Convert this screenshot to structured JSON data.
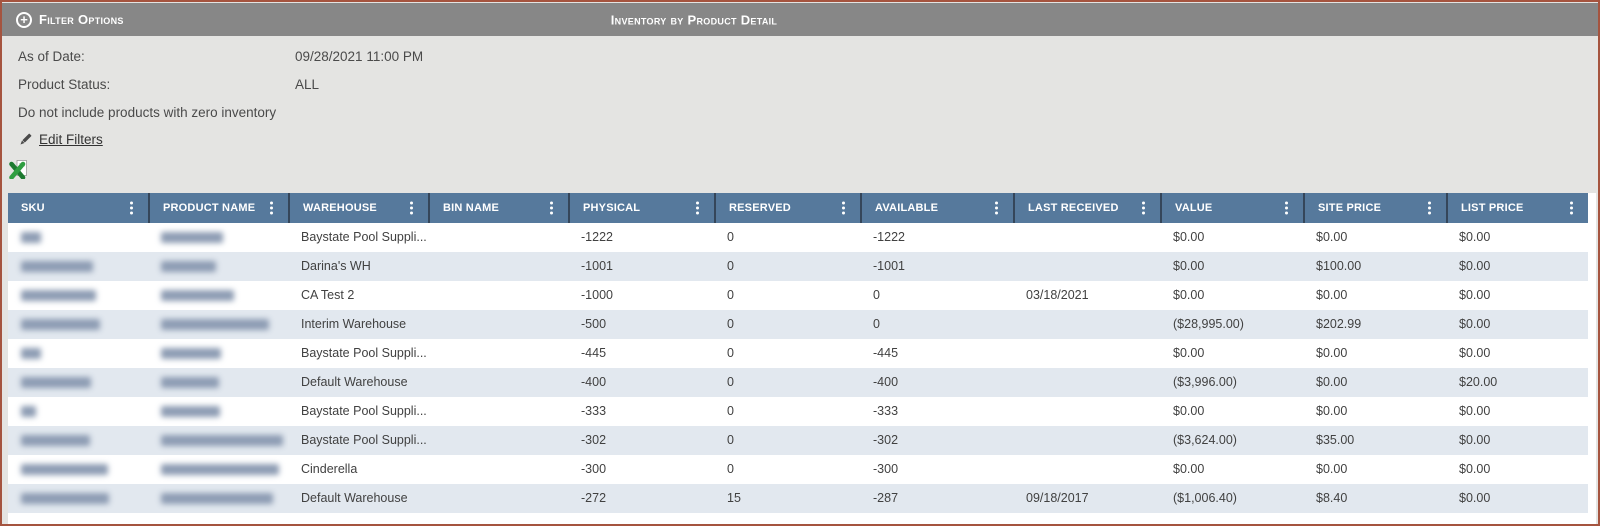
{
  "title_bar": {
    "filter_toggle_label": "Filter Options",
    "report_title": "Inventory by Product Detail"
  },
  "filter_panel": {
    "as_of_date_label": "As of Date:",
    "as_of_date_value": "09/28/2021 11:00 PM",
    "product_status_label": "Product Status:",
    "product_status_value": "ALL",
    "zero_inventory_note": "Do not include products with zero inventory",
    "edit_filters_label": "Edit Filters"
  },
  "toolbar": {
    "excel_export_icon": "export-to-excel"
  },
  "table": {
    "columns": [
      "SKU",
      "PRODUCT NAME",
      "WAREHOUSE",
      "BIN NAME",
      "PHYSICAL",
      "RESERVED",
      "AVAILABLE",
      "LAST RECEIVED",
      "VALUE",
      "SITE PRICE",
      "LIST PRICE"
    ],
    "rows": [
      {
        "sku_redacted": true,
        "name_redacted": true,
        "sku_blur_w": 20,
        "name_blur_w": 62,
        "warehouse": "Baystate Pool Suppli...",
        "bin_name": "",
        "physical": "-1222",
        "reserved": "0",
        "available": "-1222",
        "last_received": "",
        "value": "$0.00",
        "site_price": "$0.00",
        "list_price": "$0.00"
      },
      {
        "sku_redacted": true,
        "name_redacted": true,
        "sku_blur_w": 72,
        "name_blur_w": 55,
        "warehouse": "Darina's WH",
        "bin_name": "",
        "physical": "-1001",
        "reserved": "0",
        "available": "-1001",
        "last_received": "",
        "value": "$0.00",
        "site_price": "$100.00",
        "list_price": "$0.00"
      },
      {
        "sku_redacted": true,
        "name_redacted": true,
        "sku_blur_w": 75,
        "name_blur_w": 73,
        "warehouse": "CA Test 2",
        "bin_name": "",
        "physical": "-1000",
        "reserved": "0",
        "available": "0",
        "last_received": "03/18/2021",
        "value": "$0.00",
        "site_price": "$0.00",
        "list_price": "$0.00"
      },
      {
        "sku_redacted": true,
        "name_redacted": true,
        "sku_blur_w": 79,
        "name_blur_w": 108,
        "warehouse": "Interim Warehouse",
        "bin_name": "",
        "physical": "-500",
        "reserved": "0",
        "available": "0",
        "last_received": "",
        "value": "($28,995.00)",
        "site_price": "$202.99",
        "list_price": "$0.00"
      },
      {
        "sku_redacted": true,
        "name_redacted": true,
        "sku_blur_w": 20,
        "name_blur_w": 60,
        "warehouse": "Baystate Pool Suppli...",
        "bin_name": "",
        "physical": "-445",
        "reserved": "0",
        "available": "-445",
        "last_received": "",
        "value": "$0.00",
        "site_price": "$0.00",
        "list_price": "$0.00"
      },
      {
        "sku_redacted": true,
        "name_redacted": true,
        "sku_blur_w": 70,
        "name_blur_w": 58,
        "warehouse": "Default Warehouse",
        "bin_name": "",
        "physical": "-400",
        "reserved": "0",
        "available": "-400",
        "last_received": "",
        "value": "($3,996.00)",
        "site_price": "$0.00",
        "list_price": "$20.00"
      },
      {
        "sku_redacted": true,
        "name_redacted": true,
        "sku_blur_w": 15,
        "name_blur_w": 59,
        "warehouse": "Baystate Pool Suppli...",
        "bin_name": "",
        "physical": "-333",
        "reserved": "0",
        "available": "-333",
        "last_received": "",
        "value": "$0.00",
        "site_price": "$0.00",
        "list_price": "$0.00"
      },
      {
        "sku_redacted": true,
        "name_redacted": true,
        "sku_blur_w": 69,
        "name_blur_w": 122,
        "warehouse": "Baystate Pool Suppli...",
        "bin_name": "",
        "physical": "-302",
        "reserved": "0",
        "available": "-302",
        "last_received": "",
        "value": "($3,624.00)",
        "site_price": "$35.00",
        "list_price": "$0.00"
      },
      {
        "sku_redacted": true,
        "name_redacted": true,
        "sku_blur_w": 87,
        "name_blur_w": 118,
        "warehouse": "Cinderella",
        "bin_name": "",
        "physical": "-300",
        "reserved": "0",
        "available": "-300",
        "last_received": "",
        "value": "$0.00",
        "site_price": "$0.00",
        "list_price": "$0.00"
      },
      {
        "sku_redacted": true,
        "name_redacted": true,
        "sku_blur_w": 88,
        "name_blur_w": 112,
        "warehouse": "Default Warehouse",
        "bin_name": "",
        "physical": "-272",
        "reserved": "15",
        "available": "-287",
        "last_received": "09/18/2017",
        "value": "($1,006.40)",
        "site_price": "$8.40",
        "list_price": "$0.00"
      }
    ]
  },
  "colors": {
    "frame_border": "#a5543f",
    "title_bar_bg": "#878787",
    "page_bg": "#e4e4e2",
    "table_header_bg": "#56799c",
    "stripe_row_bg": "#e2e8ef",
    "excel_green": "#2f9e41"
  }
}
